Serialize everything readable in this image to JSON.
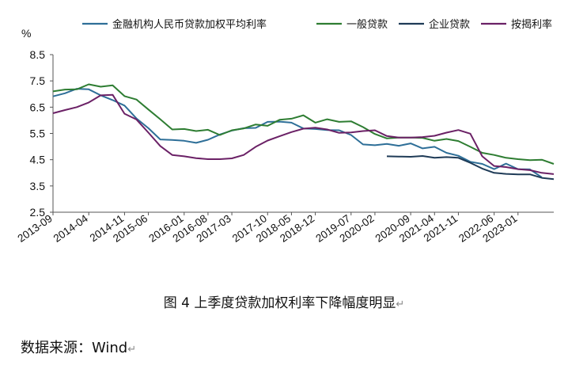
{
  "caption": "图 4 上季度贷款加权利率下降幅度明显",
  "source": "数据来源：Wind",
  "chart_data": {
    "type": "line",
    "ylabel": "%",
    "ylim": [
      2.5,
      8.5
    ],
    "yticks": [
      "8.5",
      "7.5",
      "6.5",
      "5.5",
      "4.5",
      "3.5",
      "2.5"
    ],
    "x_tick_labels": [
      "2013-09",
      "2014-04",
      "2014-11",
      "2015-06",
      "2016-01",
      "2016-08",
      "2017-03",
      "2017-10",
      "2018-05",
      "2018-12",
      "2019-07",
      "2020-02",
      "2020-09",
      "2021-04",
      "2021-11",
      "2022-06",
      "2023-01"
    ],
    "x_tick_positions": [
      0,
      3,
      6,
      8,
      11,
      13,
      15,
      18,
      20,
      22,
      25,
      27,
      30,
      32,
      34,
      37,
      39
    ],
    "grid": false,
    "legend_position": "top",
    "series": [
      {
        "name": "金融机构人民币贷款加权平均利率",
        "color": "#2e6f98",
        "start_index": 0,
        "values": [
          6.91,
          7.03,
          7.2,
          7.18,
          6.95,
          6.77,
          6.56,
          6.07,
          5.7,
          5.27,
          5.25,
          5.22,
          5.14,
          5.26,
          5.46,
          5.61,
          5.7,
          5.71,
          5.94,
          5.95,
          5.91,
          5.69,
          5.67,
          5.63,
          5.62,
          5.44,
          5.08,
          5.05,
          5.1,
          5.03,
          5.12,
          4.93,
          4.99,
          4.76,
          4.65,
          4.42,
          4.34,
          4.14,
          4.35,
          4.14,
          4.13,
          3.83
        ]
      },
      {
        "name": "一般贷款",
        "color": "#2e7d32",
        "start_index": 0,
        "values": [
          7.1,
          7.17,
          7.18,
          7.37,
          7.28,
          7.33,
          6.92,
          6.79,
          6.41,
          6.04,
          5.65,
          5.67,
          5.59,
          5.64,
          5.44,
          5.62,
          5.69,
          5.84,
          5.79,
          6.02,
          6.06,
          6.19,
          5.91,
          6.04,
          5.94,
          5.96,
          5.74,
          5.48,
          5.31,
          5.34,
          5.34,
          5.33,
          5.22,
          5.29,
          5.21,
          4.99,
          4.76,
          4.68,
          4.57,
          4.52,
          4.48,
          4.5,
          4.34
        ]
      },
      {
        "name": "企业贷款",
        "color": "#1f3b57",
        "start_index": 28,
        "values": [
          4.63,
          4.62,
          4.61,
          4.64,
          4.57,
          4.6,
          4.57,
          4.38,
          4.16,
          4.0,
          3.96,
          3.94,
          3.94,
          3.81,
          3.76
        ]
      },
      {
        "name": "按揭利率",
        "color": "#6b2166",
        "start_index": 0,
        "values": [
          6.27,
          6.39,
          6.5,
          6.68,
          6.95,
          6.97,
          6.25,
          6.03,
          5.53,
          5.02,
          4.68,
          4.63,
          4.56,
          4.52,
          4.52,
          4.55,
          4.68,
          4.99,
          5.23,
          5.39,
          5.55,
          5.68,
          5.72,
          5.65,
          5.52,
          5.54,
          5.59,
          5.62,
          5.4,
          5.34,
          5.34,
          5.36,
          5.41,
          5.53,
          5.63,
          5.49,
          4.63,
          4.26,
          4.22,
          4.14,
          4.1,
          4.0,
          3.95
        ]
      }
    ]
  }
}
